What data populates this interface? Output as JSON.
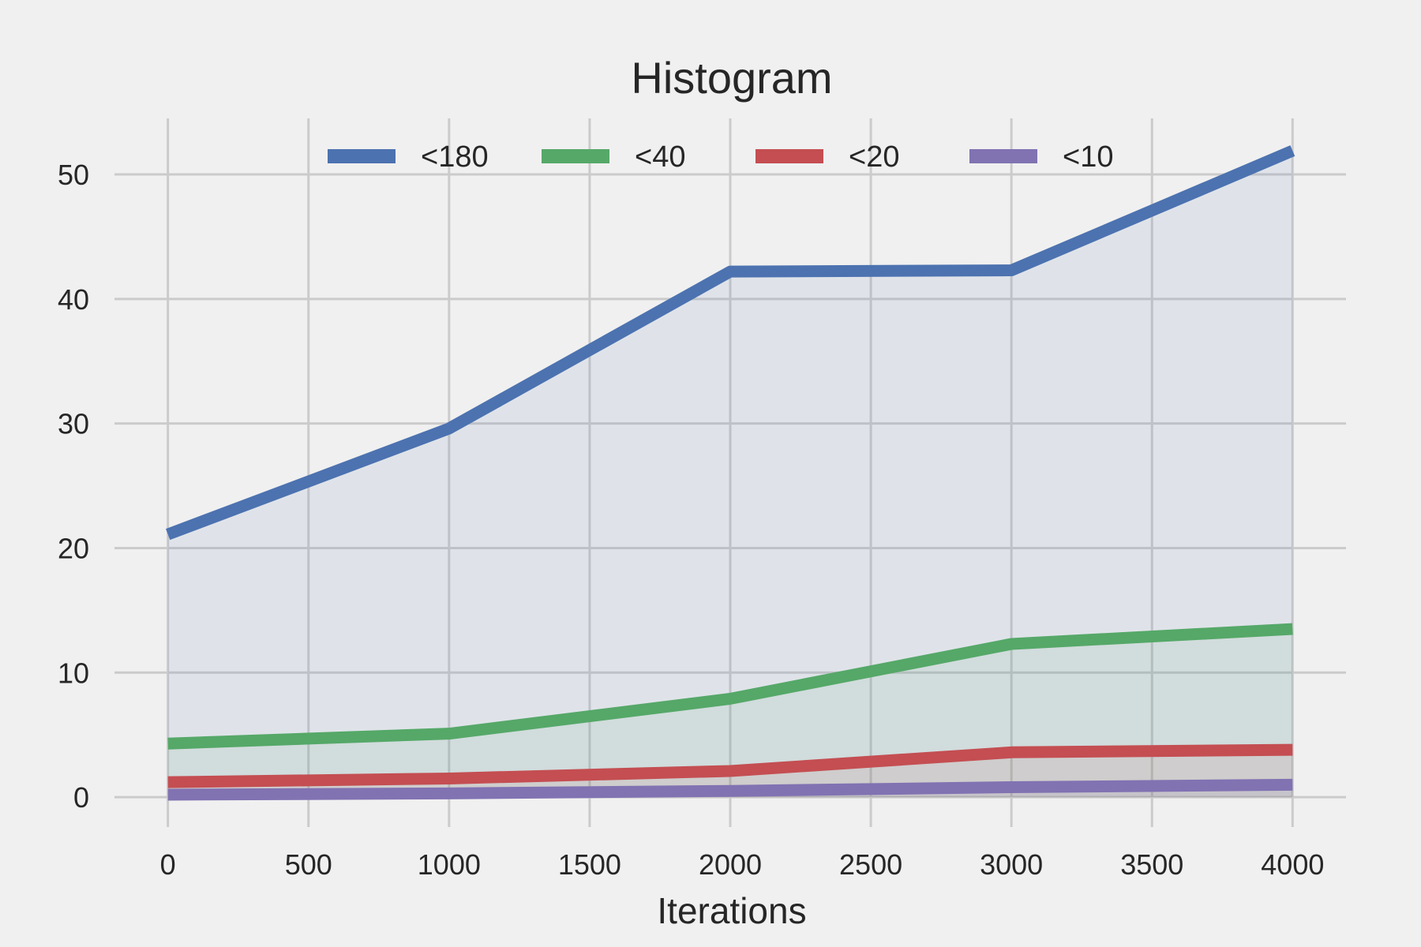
{
  "chart_data": {
    "type": "area",
    "title": "Histogram",
    "xlabel": "Iterations",
    "ylabel": "",
    "x": [
      0,
      1000,
      2000,
      3000,
      4000
    ],
    "xlim": [
      -190,
      4190
    ],
    "ylim": [
      -2.4,
      54.5
    ],
    "xticks": [
      0,
      500,
      1000,
      1500,
      2000,
      2500,
      3000,
      3500,
      4000
    ],
    "yticks": [
      0,
      10,
      20,
      30,
      40,
      50
    ],
    "grid": true,
    "legend_position": "top-center",
    "series": [
      {
        "name": "<180",
        "color": "#4c72b0",
        "values": [
          21.1,
          29.6,
          42.2,
          42.3,
          51.9
        ]
      },
      {
        "name": "<40",
        "color": "#55a868",
        "values": [
          4.3,
          5.1,
          7.9,
          12.3,
          13.5
        ]
      },
      {
        "name": "<20",
        "color": "#c44e52",
        "values": [
          1.2,
          1.5,
          2.1,
          3.6,
          3.8
        ]
      },
      {
        "name": "<10",
        "color": "#8172b2",
        "values": [
          0.2,
          0.3,
          0.5,
          0.8,
          1.0
        ]
      }
    ]
  }
}
